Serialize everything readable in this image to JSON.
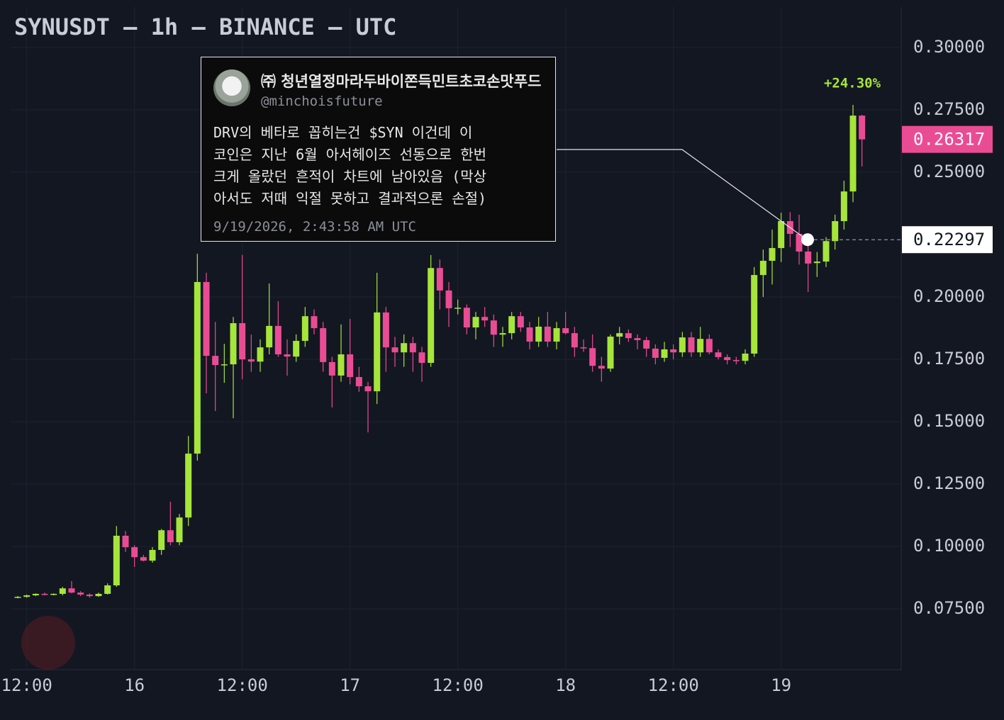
{
  "chart_data": {
    "type": "candlestick",
    "title": "SYNUSDT — 1h — BINANCE — UTC",
    "categories": [
      null,
      "12:00",
      null,
      null,
      null,
      null,
      null,
      null,
      null,
      null,
      null,
      null,
      null,
      "16",
      null,
      null,
      null,
      null,
      null,
      null,
      null,
      null,
      null,
      null,
      null,
      "12:00",
      null,
      null,
      null,
      null,
      null,
      null,
      null,
      null,
      null,
      null,
      null,
      "17",
      null,
      null,
      null,
      null,
      null,
      null,
      null,
      null,
      null,
      null,
      null,
      "12:00",
      null,
      null,
      null,
      null,
      null,
      null,
      null,
      null,
      null,
      null,
      null,
      "18",
      null,
      null,
      null,
      null,
      null,
      null,
      null,
      null,
      null,
      null,
      null,
      "12:00",
      null,
      null,
      null,
      null,
      null,
      null,
      null,
      null,
      null,
      null,
      null,
      "19",
      null,
      null,
      null,
      null,
      null,
      null,
      null,
      null,
      null
    ],
    "open": [
      0.0795,
      0.0798,
      0.0804,
      0.081,
      0.0807,
      0.081,
      0.0832,
      0.0815,
      0.0807,
      0.0801,
      0.081,
      0.0844,
      0.1043,
      0.0997,
      0.0957,
      0.0943,
      0.0986,
      0.1065,
      0.1017,
      0.1116,
      0.1372,
      0.206,
      0.1764,
      0.1727,
      0.173,
      0.1895,
      0.175,
      0.1741,
      0.1798,
      0.1884,
      0.177,
      0.1761,
      0.1824,
      0.1923,
      0.1875,
      0.1739,
      0.1685,
      0.177,
      0.1679,
      0.1642,
      0.1622,
      0.1938,
      0.1798,
      0.1778,
      0.1815,
      0.1778,
      0.1736,
      0.2116,
      0.2026,
      0.1955,
      0.1957,
      0.1878,
      0.192,
      0.1906,
      0.1849,
      0.1855,
      0.1923,
      0.1878,
      0.1821,
      0.1881,
      0.1821,
      0.1875,
      0.1855,
      0.1798,
      0.1795,
      0.1724,
      0.1713,
      0.1841,
      0.1855,
      0.1835,
      0.1827,
      0.1793,
      0.1756,
      0.179,
      0.1778,
      0.1838,
      0.1778,
      0.1832,
      0.1778,
      0.1759,
      0.1747,
      0.1744,
      0.1773,
      0.2088,
      0.2145,
      0.2196,
      0.2304,
      0.2253,
      0.2182,
      0.2136,
      0.2142,
      0.2224,
      0.2304,
      0.2423,
      0.2727
    ],
    "high": [
      0.0801,
      0.0807,
      0.0812,
      0.0815,
      0.0812,
      0.0838,
      0.0861,
      0.0821,
      0.0812,
      0.0815,
      0.0852,
      0.1082,
      0.1062,
      0.1005,
      0.0966,
      0.0997,
      0.107,
      0.1179,
      0.113,
      0.1443,
      0.2173,
      0.2097,
      0.19,
      0.1812,
      0.192,
      0.2168,
      0.1849,
      0.183,
      0.2054,
      0.1983,
      0.183,
      0.185,
      0.196,
      0.195,
      0.19,
      0.176,
      0.189,
      0.1912,
      0.172,
      0.166,
      0.2097,
      0.196,
      0.184,
      0.185,
      0.184,
      0.18,
      0.2168,
      0.215,
      0.206,
      0.199,
      0.197,
      0.194,
      0.196,
      0.193,
      0.188,
      0.194,
      0.194,
      0.19,
      0.192,
      0.194,
      0.19,
      0.194,
      0.188,
      0.183,
      0.185,
      0.176,
      0.185,
      0.188,
      0.187,
      0.185,
      0.184,
      0.181,
      0.182,
      0.181,
      0.186,
      0.186,
      0.188,
      0.185,
      0.179,
      0.177,
      0.176,
      0.179,
      0.212,
      0.219,
      0.227,
      0.2338,
      0.234,
      0.233,
      0.223,
      0.218,
      0.224,
      0.233,
      0.2466,
      0.277,
      0.273
    ],
    "low": [
      0.0792,
      0.0795,
      0.0801,
      0.0804,
      0.0804,
      0.0804,
      0.0812,
      0.0801,
      0.0795,
      0.0798,
      0.0807,
      0.0838,
      0.0978,
      0.0918,
      0.094,
      0.0935,
      0.0966,
      0.1005,
      0.1005,
      0.1082,
      0.1344,
      0.1614,
      0.1543,
      0.1656,
      0.1514,
      0.167,
      0.17,
      0.17,
      0.177,
      0.176,
      0.1685,
      0.174,
      0.18,
      0.185,
      0.17,
      0.1557,
      0.166,
      0.165,
      0.162,
      0.1457,
      0.1571,
      0.17,
      0.172,
      0.172,
      0.17,
      0.166,
      0.172,
      0.195,
      0.188,
      0.193,
      0.185,
      0.183,
      0.188,
      0.18,
      0.18,
      0.183,
      0.186,
      0.179,
      0.18,
      0.18,
      0.179,
      0.185,
      0.176,
      0.178,
      0.17,
      0.166,
      0.17,
      0.181,
      0.182,
      0.179,
      0.176,
      0.173,
      0.174,
      0.175,
      0.176,
      0.176,
      0.176,
      0.177,
      0.175,
      0.173,
      0.173,
      0.173,
      0.176,
      0.2,
      0.205,
      0.214,
      0.22,
      0.213,
      0.202,
      0.208,
      0.212,
      0.219,
      0.227,
      0.238,
      0.2523
    ],
    "close": [
      0.0798,
      0.0804,
      0.081,
      0.0807,
      0.081,
      0.0832,
      0.0815,
      0.0807,
      0.0801,
      0.081,
      0.0844,
      0.1043,
      0.0997,
      0.0957,
      0.0943,
      0.0986,
      0.1065,
      0.1017,
      0.1116,
      0.1372,
      0.206,
      0.1764,
      0.1727,
      0.173,
      0.1895,
      0.175,
      0.1741,
      0.1798,
      0.1884,
      0.177,
      0.1761,
      0.1824,
      0.1923,
      0.1875,
      0.1739,
      0.1685,
      0.177,
      0.1679,
      0.1642,
      0.1622,
      0.1938,
      0.1798,
      0.1778,
      0.1815,
      0.1778,
      0.1736,
      0.2116,
      0.2026,
      0.1955,
      0.1957,
      0.1878,
      0.192,
      0.1906,
      0.1849,
      0.1855,
      0.1923,
      0.1878,
      0.1821,
      0.1881,
      0.1821,
      0.1875,
      0.1855,
      0.1798,
      0.1795,
      0.1724,
      0.1713,
      0.1841,
      0.1855,
      0.1835,
      0.1827,
      0.1793,
      0.1756,
      0.179,
      0.1778,
      0.1838,
      0.1778,
      0.1832,
      0.1778,
      0.1759,
      0.1747,
      0.1744,
      0.1773,
      0.2088,
      0.2145,
      0.2196,
      0.2304,
      0.2253,
      0.2182,
      0.2134,
      0.2142,
      0.2224,
      0.2304,
      0.2423,
      0.2727,
      0.26317
    ],
    "up_color": "#a6e53a",
    "down_color": "#ea4c94",
    "ylim": [
      0.0506,
      0.3162
    ],
    "yticks": [
      {
        "value": 0.075,
        "label": "0.07500"
      },
      {
        "value": 0.1,
        "label": "0.10000"
      },
      {
        "value": 0.125,
        "label": "0.12500"
      },
      {
        "value": 0.15,
        "label": "0.15000"
      },
      {
        "value": 0.175,
        "label": "0.17500"
      },
      {
        "value": 0.2,
        "label": "0.20000"
      },
      {
        "value": 0.25,
        "label": "0.25000"
      },
      {
        "value": 0.275,
        "label": "0.27500"
      },
      {
        "value": 0.3,
        "label": "0.30000"
      }
    ],
    "grid": true,
    "last_price": 0.26317,
    "marker_price": 0.22297,
    "change_label": "+24.30%"
  },
  "tweet": {
    "name": "㈜ 청년열정마라두바이쫀득민트초코손맛푸드",
    "handle": "@minchoisfuture",
    "lines": [
      "DRV의 베타로 꼽히는건 $SYN 이건데 이",
      "코인은 지난 6월 아서헤이즈 선동으로 한번",
      "크게 올랐던 흔적이 차트에 남아있음 (막상",
      "아서도 저때 익절 못하고 결과적으론 손절)"
    ],
    "timestamp": "9/19/2026, 2:43:58 AM UTC"
  }
}
